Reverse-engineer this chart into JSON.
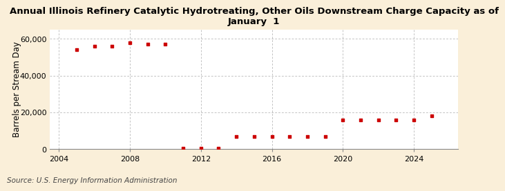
{
  "title": "Annual Illinois Refinery Catalytic Hydrotreating, Other Oils Downstream Charge Capacity as of\nJanuary  1",
  "ylabel": "Barrels per Stream Day",
  "source": "Source: U.S. Energy Information Administration",
  "background_color": "#faefd9",
  "plot_background_color": "#ffffff",
  "marker_color": "#cc0000",
  "years": [
    2005,
    2006,
    2007,
    2008,
    2009,
    2010,
    2011,
    2012,
    2013,
    2014,
    2015,
    2016,
    2017,
    2018,
    2019,
    2020,
    2021,
    2022,
    2023,
    2024,
    2025
  ],
  "values": [
    54000,
    56000,
    56000,
    58000,
    57000,
    57000,
    500,
    500,
    500,
    7000,
    7000,
    7000,
    7000,
    7000,
    7000,
    16000,
    16000,
    16000,
    16000,
    16000,
    18000
  ],
  "xlim": [
    2003.5,
    2026.5
  ],
  "ylim": [
    0,
    65000
  ],
  "yticks": [
    0,
    20000,
    40000,
    60000
  ],
  "xticks": [
    2004,
    2008,
    2012,
    2016,
    2020,
    2024
  ],
  "grid_color": "#aaaaaa",
  "title_fontsize": 9.5,
  "ylabel_fontsize": 8.5,
  "tick_fontsize": 8,
  "source_fontsize": 7.5
}
